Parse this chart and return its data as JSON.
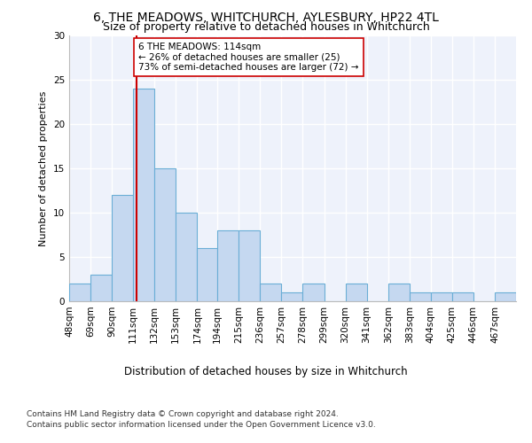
{
  "title1": "6, THE MEADOWS, WHITCHURCH, AYLESBURY, HP22 4TL",
  "title2": "Size of property relative to detached houses in Whitchurch",
  "xlabel": "Distribution of detached houses by size in Whitchurch",
  "ylabel": "Number of detached properties",
  "annotation_line1": "6 THE MEADOWS: 114sqm",
  "annotation_line2": "← 26% of detached houses are smaller (25)",
  "annotation_line3": "73% of semi-detached houses are larger (72) →",
  "bar_color": "#c5d8f0",
  "bar_edge_color": "#6aaed6",
  "vline_color": "#cc0000",
  "vline_x": 114,
  "bin_edges": [
    48,
    69,
    90,
    111,
    132,
    153,
    174,
    194,
    215,
    236,
    257,
    278,
    299,
    320,
    341,
    362,
    383,
    404,
    425,
    446,
    467,
    488
  ],
  "bar_heights": [
    2,
    3,
    12,
    24,
    15,
    10,
    6,
    8,
    8,
    2,
    1,
    2,
    0,
    2,
    0,
    2,
    1,
    1,
    1,
    0,
    1
  ],
  "ylim": [
    0,
    30
  ],
  "yticks": [
    0,
    5,
    10,
    15,
    20,
    25,
    30
  ],
  "background_color": "#eef2fb",
  "footnote1": "Contains HM Land Registry data © Crown copyright and database right 2024.",
  "footnote2": "Contains public sector information licensed under the Open Government Licence v3.0."
}
